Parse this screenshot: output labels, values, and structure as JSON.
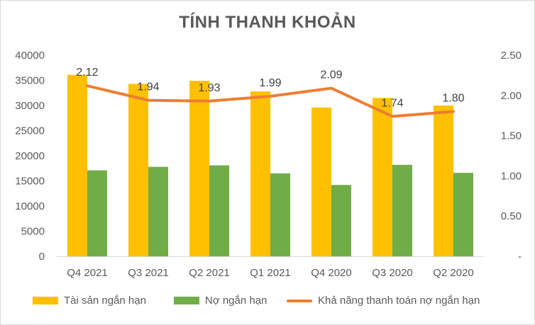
{
  "chart_data": {
    "type": "bar",
    "title": "TÍNH THANH KHOẢN",
    "categories": [
      "Q4 2021",
      "Q3 2021",
      "Q2 2021",
      "Q1 2021",
      "Q4 2020",
      "Q3 2020",
      "Q2 2020"
    ],
    "series": [
      {
        "name": "Tài sản ngắn hạn",
        "type": "bar",
        "axis": "left",
        "color": "#ffc000",
        "values": [
          36100,
          34300,
          34900,
          32800,
          29600,
          31500,
          30000
        ]
      },
      {
        "name": "Nợ ngắn hạn",
        "type": "bar",
        "axis": "left",
        "color": "#70ad47",
        "values": [
          17100,
          17800,
          18100,
          16500,
          14200,
          18200,
          16600
        ]
      },
      {
        "name": "Khả năng thanh toán nợ ngắn hạn",
        "type": "line",
        "axis": "right",
        "color": "#ed7d31",
        "values": [
          2.12,
          1.94,
          1.93,
          1.99,
          2.09,
          1.74,
          1.8
        ],
        "data_labels": [
          "2.12",
          "1.94",
          "1.93",
          "1.99",
          "2.09",
          "1.74",
          "1.80"
        ]
      }
    ],
    "y_left": {
      "ylim": [
        0,
        40000
      ],
      "ticks": [
        0,
        5000,
        10000,
        15000,
        20000,
        25000,
        30000,
        35000,
        40000
      ],
      "tick_labels": [
        "0",
        "5000",
        "10000",
        "15000",
        "20000",
        "25000",
        "30000",
        "35000",
        "40000"
      ]
    },
    "y_right": {
      "ylim": [
        0,
        2.5
      ],
      "ticks": [
        0,
        0.5,
        1.0,
        1.5,
        2.0,
        2.5
      ],
      "tick_labels": [
        "-",
        "0.50",
        "1.00",
        "1.50",
        "2.00",
        "2.50"
      ]
    },
    "grid": false,
    "legend": "bottom"
  }
}
